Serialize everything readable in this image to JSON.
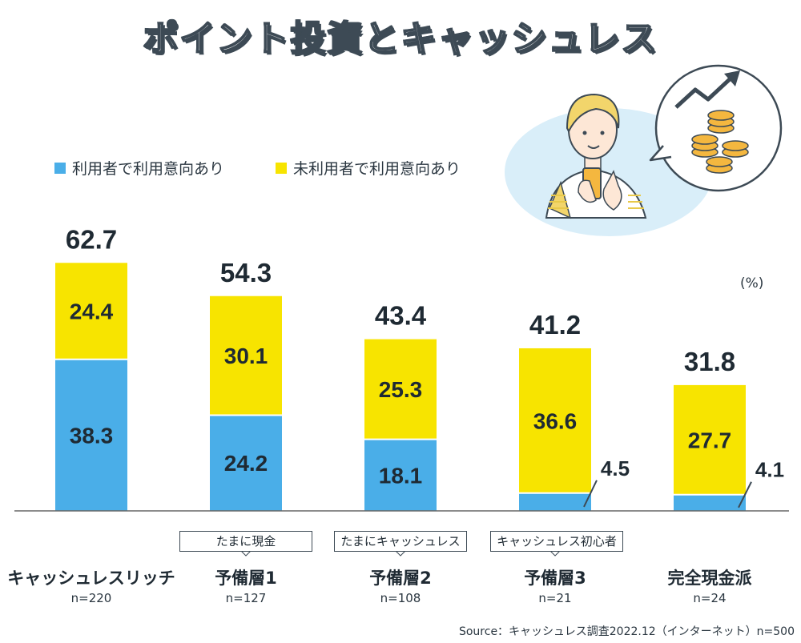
{
  "title": "ポイント投資とキャッシュレス",
  "unit": "(%)",
  "source": "Source：キャッシュレス調査2022.12（インターネット）n=500",
  "legend": {
    "users": "利用者で利用意向あり",
    "nonusers": "未利用者で利用意向あり"
  },
  "colors": {
    "users": "#4aaee8",
    "nonusers": "#f7e400",
    "axis": "#666666",
    "text": "#1f2a33",
    "bubble": "#d9eef9"
  },
  "tags": [
    "たまに現金",
    "たまにキャッシュレス",
    "キャッシュレス初心者"
  ],
  "chart_data": {
    "type": "bar",
    "stacked": true,
    "title": "ポイント投資とキャッシュレス",
    "ylabel": "(%)",
    "ylim": [
      0,
      70
    ],
    "categories": [
      "キャッシュレスリッチ",
      "予備層1",
      "予備層2",
      "予備層3",
      "完全現金派"
    ],
    "sample_sizes": [
      "n=220",
      "n=127",
      "n=108",
      "n=21",
      "n=24"
    ],
    "series": [
      {
        "name": "利用者で利用意向あり",
        "values": [
          38.3,
          24.2,
          18.1,
          4.5,
          4.1
        ]
      },
      {
        "name": "未利用者で利用意向あり",
        "values": [
          24.4,
          30.1,
          25.3,
          36.6,
          27.7
        ]
      }
    ],
    "totals": [
      62.7,
      54.3,
      43.4,
      41.2,
      31.8
    ],
    "bottom_labels": [
      "38.3",
      "24.2",
      "18.1",
      "4.5",
      "4.1"
    ],
    "top_labels": [
      "24.4",
      "30.1",
      "25.3",
      "36.6",
      "27.7"
    ],
    "total_labels": [
      "62.7",
      "54.3",
      "43.4",
      "41.2",
      "31.8"
    ]
  }
}
